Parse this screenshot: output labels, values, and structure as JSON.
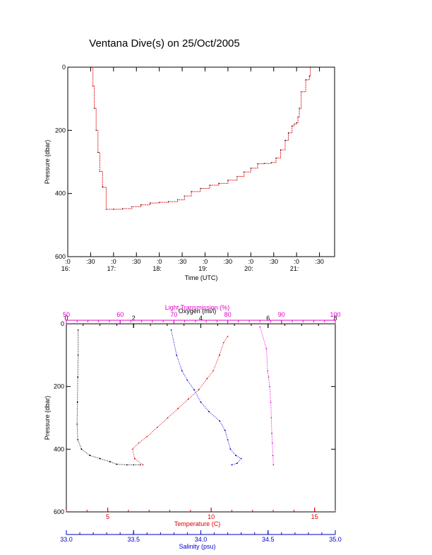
{
  "title": "Ventana Dive(s) on 25/Oct/2005",
  "colors": {
    "black": "#000000",
    "red": "#dd0000",
    "blue": "#0000cc",
    "magenta": "#e000c8",
    "profile_red": "#cc0000"
  },
  "chart_data": [
    {
      "type": "line",
      "name": "pressure-vs-time",
      "xlabel": "Time (UTC)",
      "ylabel": "Pressure (dbar)",
      "x_unit": "hours UTC",
      "xlim": [
        16.0,
        21.83
      ],
      "ylim": [
        600,
        0
      ],
      "y_ticks": [
        "0",
        "200",
        "400",
        "600"
      ],
      "x_ticks": [
        {
          "value": 16.0,
          "top": ":0",
          "bottom": "16:"
        },
        {
          "value": 16.5,
          "top": ":30",
          "bottom": ""
        },
        {
          "value": 17.0,
          "top": ":0",
          "bottom": "17:"
        },
        {
          "value": 17.5,
          "top": ":30",
          "bottom": ""
        },
        {
          "value": 18.0,
          "top": ":0",
          "bottom": "18:"
        },
        {
          "value": 18.5,
          "top": ":30",
          "bottom": ""
        },
        {
          "value": 19.0,
          "top": ":0",
          "bottom": "19:"
        },
        {
          "value": 19.5,
          "top": ":30",
          "bottom": ""
        },
        {
          "value": 20.0,
          "top": ":0",
          "bottom": "20:"
        },
        {
          "value": 20.5,
          "top": ":30",
          "bottom": ""
        },
        {
          "value": 21.0,
          "top": ":0",
          "bottom": "21:"
        },
        {
          "value": 21.5,
          "top": ":30",
          "bottom": ""
        }
      ],
      "series": [
        {
          "color": "#dd0000",
          "x": [
            16.53,
            16.55,
            16.58,
            16.62,
            16.66,
            16.7,
            16.76,
            16.84,
            17.0,
            17.2,
            17.4,
            17.6,
            17.8,
            18.0,
            18.2,
            18.4,
            18.55,
            18.7,
            18.9,
            19.1,
            19.3,
            19.5,
            19.7,
            19.85,
            20.0,
            20.15,
            20.3,
            20.45,
            20.55,
            20.65,
            20.75,
            20.82,
            20.9,
            20.95,
            21.0,
            21.03,
            21.06,
            21.1,
            21.2,
            21.28,
            21.3
          ],
          "y": [
            0,
            60,
            130,
            200,
            270,
            330,
            380,
            450,
            450,
            448,
            442,
            436,
            430,
            428,
            426,
            420,
            408,
            394,
            384,
            374,
            368,
            358,
            346,
            332,
            320,
            306,
            305,
            302,
            288,
            262,
            232,
            208,
            186,
            180,
            176,
            158,
            130,
            78,
            40,
            28,
            0
          ]
        }
      ]
    },
    {
      "type": "scatter",
      "name": "profiles",
      "ylabel": "Pressure (dbar)",
      "ylim": [
        600,
        0
      ],
      "y_ticks": [
        "0",
        "200",
        "400",
        "600"
      ],
      "axes": [
        {
          "label": "Oxygen (ml/l)",
          "position": "top",
          "color": "#000000",
          "lim": [
            0,
            8
          ],
          "ticks": [
            "0",
            "2",
            "4",
            "6",
            "8"
          ]
        },
        {
          "label": "Light Transmission (%)",
          "position": "top",
          "color": "#e000c8",
          "lim": [
            50,
            100
          ],
          "ticks": [
            "50",
            "60",
            "70",
            "80",
            "90",
            "100"
          ]
        },
        {
          "label": "Temperature (C)",
          "position": "bottom",
          "color": "#dd0000",
          "lim": [
            3.0,
            16.0
          ],
          "ticks": [
            "5",
            "10",
            "15"
          ]
        },
        {
          "label": "Salinity (psu)",
          "position": "bottom",
          "color": "#0000cc",
          "lim": [
            33.0,
            35.0
          ],
          "ticks": [
            "33.0",
            "33.5",
            "34.0",
            "34.5",
            "35.0"
          ]
        }
      ],
      "series": [
        {
          "axis": "Oxygen (ml/l)",
          "color": "#000000",
          "x": [
            0.35,
            0.35,
            0.34,
            0.33,
            0.32,
            0.34,
            0.45,
            0.7,
            1.0,
            1.3,
            1.5,
            1.8,
            2.0,
            2.2
          ],
          "y": [
            20,
            100,
            170,
            250,
            320,
            370,
            400,
            420,
            430,
            440,
            448,
            450,
            450,
            450
          ]
        },
        {
          "axis": "Light Transmission (%)",
          "color": "#e000c8",
          "x": [
            86.0,
            87.2,
            87.4,
            87.6,
            87.8,
            88.0,
            88.1,
            88.2,
            88.3,
            88.4,
            88.5
          ],
          "y": [
            10,
            80,
            150,
            170,
            200,
            250,
            300,
            350,
            380,
            420,
            450
          ]
        },
        {
          "axis": "Temperature (C)",
          "color": "#dd0000",
          "x": [
            10.8,
            10.6,
            10.4,
            10.1,
            9.8,
            9.4,
            8.9,
            8.4,
            7.9,
            7.4,
            6.9,
            6.5,
            6.2,
            6.3,
            6.7
          ],
          "y": [
            40,
            60,
            100,
            150,
            175,
            210,
            240,
            270,
            300,
            330,
            360,
            380,
            400,
            430,
            450
          ]
        },
        {
          "axis": "Salinity (psu)",
          "color": "#0000cc",
          "x": [
            33.78,
            33.82,
            33.86,
            33.9,
            33.95,
            34.0,
            34.06,
            34.14,
            34.18,
            34.2,
            34.22,
            34.26,
            34.3,
            34.27,
            34.23
          ],
          "y": [
            20,
            100,
            150,
            180,
            210,
            250,
            280,
            310,
            340,
            370,
            400,
            420,
            430,
            445,
            450
          ]
        }
      ]
    }
  ]
}
